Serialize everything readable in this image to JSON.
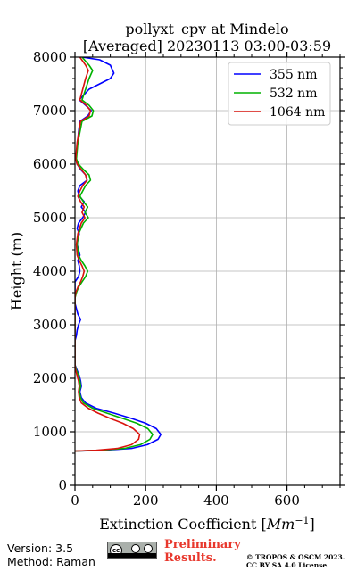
{
  "chart_data": {
    "type": "line",
    "title_line1": "pollyxt_cpv at Mindelo",
    "title_line2": "[Averaged] 20230113 03:00-03:59",
    "xlabel_prefix": "Extinction Coefficient [",
    "xlabel_unit_base": "Mm",
    "xlabel_unit_exp": "−1",
    "xlabel_suffix": "]",
    "ylabel": "Height (m)",
    "xlim": [
      0,
      750
    ],
    "ylim": [
      0,
      8000
    ],
    "xticks": [
      0,
      200,
      400,
      600
    ],
    "yticks": [
      0,
      1000,
      2000,
      3000,
      4000,
      5000,
      6000,
      7000,
      8000
    ],
    "grid": true,
    "legend_position": "top-right",
    "series": [
      {
        "name": "355 nm",
        "color": "#0000ff",
        "points": [
          [
            0,
            640
          ],
          [
            80,
            655
          ],
          [
            160,
            690
          ],
          [
            205,
            760
          ],
          [
            235,
            860
          ],
          [
            243,
            950
          ],
          [
            230,
            1060
          ],
          [
            200,
            1160
          ],
          [
            160,
            1250
          ],
          [
            110,
            1350
          ],
          [
            60,
            1440
          ],
          [
            30,
            1540
          ],
          [
            18,
            1640
          ],
          [
            14,
            1750
          ],
          [
            18,
            1850
          ],
          [
            16,
            1950
          ],
          [
            12,
            2050
          ],
          [
            6,
            2150
          ],
          [
            0,
            2250
          ],
          [
            0,
            2700
          ],
          [
            4,
            2800
          ],
          [
            6,
            2900
          ],
          [
            10,
            3000
          ],
          [
            16,
            3100
          ],
          [
            8,
            3200
          ],
          [
            4,
            3300
          ],
          [
            0,
            3400
          ],
          [
            0,
            3800
          ],
          [
            10,
            3900
          ],
          [
            14,
            4000
          ],
          [
            12,
            4100
          ],
          [
            8,
            4200
          ],
          [
            14,
            4300
          ],
          [
            10,
            4400
          ],
          [
            6,
            4500
          ],
          [
            8,
            4600
          ],
          [
            12,
            4700
          ],
          [
            6,
            4800
          ],
          [
            10,
            4900
          ],
          [
            22,
            5000
          ],
          [
            30,
            5100
          ],
          [
            18,
            5200
          ],
          [
            26,
            5300
          ],
          [
            12,
            5400
          ],
          [
            8,
            5500
          ],
          [
            14,
            5600
          ],
          [
            34,
            5700
          ],
          [
            30,
            5800
          ],
          [
            16,
            5900
          ],
          [
            6,
            6000
          ],
          [
            2,
            6100
          ],
          [
            6,
            6300
          ],
          [
            10,
            6600
          ],
          [
            14,
            6800
          ],
          [
            36,
            6900
          ],
          [
            46,
            7000
          ],
          [
            30,
            7100
          ],
          [
            12,
            7200
          ],
          [
            40,
            7400
          ],
          [
            70,
            7500
          ],
          [
            100,
            7600
          ],
          [
            110,
            7700
          ],
          [
            100,
            7850
          ],
          [
            70,
            7950
          ],
          [
            20,
            8000
          ]
        ]
      },
      {
        "name": "532 nm",
        "color": "#00b200",
        "points": [
          [
            0,
            640
          ],
          [
            70,
            655
          ],
          [
            140,
            690
          ],
          [
            185,
            760
          ],
          [
            212,
            860
          ],
          [
            220,
            950
          ],
          [
            206,
            1060
          ],
          [
            175,
            1160
          ],
          [
            135,
            1250
          ],
          [
            90,
            1350
          ],
          [
            50,
            1440
          ],
          [
            24,
            1540
          ],
          [
            16,
            1640
          ],
          [
            12,
            1750
          ],
          [
            16,
            1850
          ],
          [
            14,
            1950
          ],
          [
            10,
            2050
          ],
          [
            4,
            2150
          ],
          [
            0,
            2250
          ],
          [
            0,
            3500
          ],
          [
            4,
            3600
          ],
          [
            10,
            3700
          ],
          [
            20,
            3800
          ],
          [
            30,
            3900
          ],
          [
            36,
            4000
          ],
          [
            28,
            4100
          ],
          [
            18,
            4200
          ],
          [
            10,
            4300
          ],
          [
            6,
            4500
          ],
          [
            10,
            4700
          ],
          [
            24,
            4900
          ],
          [
            38,
            5000
          ],
          [
            28,
            5100
          ],
          [
            36,
            5200
          ],
          [
            24,
            5300
          ],
          [
            14,
            5400
          ],
          [
            22,
            5500
          ],
          [
            30,
            5600
          ],
          [
            44,
            5700
          ],
          [
            40,
            5800
          ],
          [
            24,
            5900
          ],
          [
            10,
            6000
          ],
          [
            4,
            6100
          ],
          [
            8,
            6400
          ],
          [
            20,
            6800
          ],
          [
            48,
            6900
          ],
          [
            52,
            7000
          ],
          [
            40,
            7100
          ],
          [
            20,
            7200
          ],
          [
            30,
            7400
          ],
          [
            40,
            7600
          ],
          [
            50,
            7750
          ],
          [
            40,
            7850
          ],
          [
            20,
            8000
          ]
        ]
      },
      {
        "name": "1064 nm",
        "color": "#d9130d",
        "points": [
          [
            0,
            640
          ],
          [
            60,
            655
          ],
          [
            120,
            690
          ],
          [
            160,
            760
          ],
          [
            180,
            860
          ],
          [
            183,
            950
          ],
          [
            165,
            1060
          ],
          [
            135,
            1160
          ],
          [
            100,
            1250
          ],
          [
            65,
            1350
          ],
          [
            38,
            1440
          ],
          [
            18,
            1540
          ],
          [
            12,
            1640
          ],
          [
            10,
            1750
          ],
          [
            12,
            1850
          ],
          [
            10,
            1950
          ],
          [
            6,
            2050
          ],
          [
            2,
            2150
          ],
          [
            0,
            2250
          ],
          [
            0,
            3500
          ],
          [
            2,
            3600
          ],
          [
            8,
            3700
          ],
          [
            16,
            3800
          ],
          [
            22,
            3900
          ],
          [
            26,
            4000
          ],
          [
            20,
            4100
          ],
          [
            12,
            4200
          ],
          [
            6,
            4300
          ],
          [
            4,
            4500
          ],
          [
            8,
            4700
          ],
          [
            18,
            4900
          ],
          [
            28,
            5000
          ],
          [
            20,
            5100
          ],
          [
            26,
            5200
          ],
          [
            16,
            5300
          ],
          [
            8,
            5400
          ],
          [
            14,
            5500
          ],
          [
            22,
            5600
          ],
          [
            34,
            5700
          ],
          [
            30,
            5800
          ],
          [
            18,
            5900
          ],
          [
            6,
            6000
          ],
          [
            2,
            6100
          ],
          [
            6,
            6400
          ],
          [
            16,
            6800
          ],
          [
            40,
            6900
          ],
          [
            44,
            7000
          ],
          [
            32,
            7100
          ],
          [
            14,
            7200
          ],
          [
            22,
            7400
          ],
          [
            30,
            7600
          ],
          [
            38,
            7750
          ],
          [
            30,
            7850
          ],
          [
            14,
            8000
          ]
        ]
      }
    ]
  },
  "footer": {
    "version": "Version: 3.5",
    "method": "Method: Raman",
    "cc_text": "cc",
    "prelim_line1": "Preliminary",
    "prelim_line2": "Results.",
    "copyright_line1": "© TROPOS & OSCM 2023.",
    "copyright_line2": "CC BY SA 4.0 License."
  }
}
